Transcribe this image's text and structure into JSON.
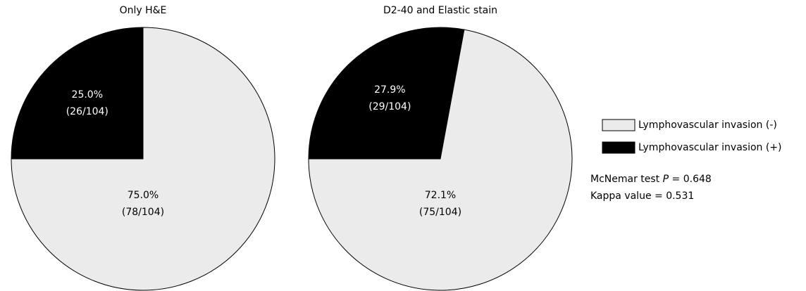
{
  "chart_data": [
    {
      "type": "pie",
      "title": "Only H&E",
      "values": [
        75.0,
        25.0
      ],
      "value_labels": [
        "75.0%",
        "25.0%"
      ],
      "count_labels": [
        "(78/104)",
        "(26/104)"
      ]
    },
    {
      "type": "pie",
      "title": "D2-40 and Elastic stain",
      "values": [
        72.1,
        27.9
      ],
      "value_labels": [
        "72.1%",
        "27.9%"
      ],
      "count_labels": [
        "(75/104)",
        "(29/104)"
      ]
    }
  ],
  "legend": {
    "items": [
      {
        "name": "Lymphovascular invasion (-)",
        "color": "#ebebeb"
      },
      {
        "name": "Lymphovascular invasion (+)",
        "color": "#000000"
      }
    ]
  },
  "annotations": {
    "mcnemar": {
      "prefix": "McNemar test ",
      "symbol": "P",
      "suffix": " = 0.648"
    },
    "kappa": "Kappa value = 0.531"
  }
}
